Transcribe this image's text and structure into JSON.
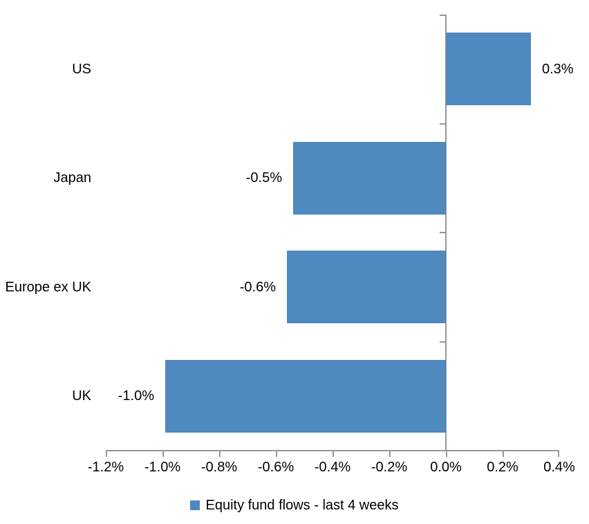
{
  "chart_data": {
    "type": "bar",
    "orientation": "horizontal",
    "title": "",
    "categories": [
      "US",
      "Japan",
      "Europe ex UK",
      "UK"
    ],
    "series": [
      {
        "name": "Equity fund flows - last 4 weeks",
        "values": [
          0.3,
          -0.5,
          -0.6,
          -1.0
        ],
        "plot_values": [
          0.3,
          -0.54,
          -0.56,
          -0.99
        ],
        "data_labels": [
          "0.3%",
          "-0.5%",
          "-0.6%",
          "-1.0%"
        ]
      }
    ],
    "xlabel": "",
    "ylabel": "",
    "xlim": [
      -1.2,
      0.4
    ],
    "x_tick_interval": 0.2,
    "x_tick_labels": [
      "-1.2%",
      "-1.0%",
      "-0.8%",
      "-0.6%",
      "-0.4%",
      "-0.2%",
      "0.0%",
      "0.2%",
      "0.4%"
    ],
    "grid": false,
    "legend": {
      "position": "bottom",
      "entries": [
        {
          "label": "Equity fund flows - last 4 weeks",
          "marker": "square",
          "color": "#4E89BF"
        }
      ]
    },
    "colors": {
      "bar": "#4E89BF",
      "axis": "#969696",
      "text": "#000000",
      "background": "#FFFFFF"
    }
  }
}
